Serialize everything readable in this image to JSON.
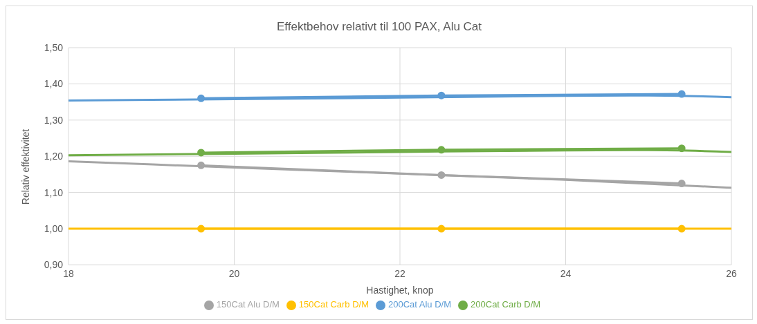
{
  "chart_data": {
    "type": "line",
    "title": "Effektbehov relativt til 100 PAX, Alu Cat",
    "xlabel": "Hastighet, knop",
    "ylabel": "Relativ effektivitet",
    "xlim": [
      18,
      26
    ],
    "xticks": [
      18,
      20,
      22,
      24,
      26
    ],
    "ylim": [
      0.9,
      1.5
    ],
    "yticks": [
      {
        "value": 0.9,
        "label": "0,90"
      },
      {
        "value": 1.0,
        "label": "1,00"
      },
      {
        "value": 1.1,
        "label": "1,10"
      },
      {
        "value": 1.2,
        "label": "1,20"
      },
      {
        "value": 1.3,
        "label": "1,30"
      },
      {
        "value": 1.4,
        "label": "1,40"
      },
      {
        "value": 1.5,
        "label": "1,50"
      }
    ],
    "grid": true,
    "legend": "bottom",
    "marker": "circle",
    "series": [
      {
        "color": "#a5a5a5",
        "marker": "none",
        "x": [
          18,
          20,
          22,
          24,
          26
        ],
        "values": [
          1.186,
          1.169,
          1.152,
          1.135,
          1.113
        ]
      },
      {
        "color": "#ffc000",
        "marker": "none",
        "x": [
          18,
          26
        ],
        "values": [
          1.0,
          1.0
        ]
      },
      {
        "color": "#5b9bd5",
        "marker": "none",
        "x": [
          18,
          20,
          22,
          24,
          25,
          26
        ],
        "values": [
          1.354,
          1.358,
          1.362,
          1.367,
          1.368,
          1.363
        ]
      },
      {
        "color": "#70ad47",
        "marker": "none",
        "x": [
          18,
          20,
          22,
          24,
          25,
          26
        ],
        "values": [
          1.203,
          1.207,
          1.212,
          1.216,
          1.217,
          1.212
        ]
      },
      {
        "name": "150Cat Alu D/M",
        "color": "#a5a5a5",
        "x": [
          19.6,
          22.5,
          25.4
        ],
        "values": [
          1.175,
          1.148,
          1.125
        ]
      },
      {
        "name": "150Cat Carb D/M",
        "color": "#ffc000",
        "x": [
          19.6,
          22.5,
          25.4
        ],
        "values": [
          1.0,
          1.0,
          1.0
        ]
      },
      {
        "name": "200Cat Alu D/M",
        "color": "#5b9bd5",
        "x": [
          19.6,
          22.5,
          25.4
        ],
        "values": [
          1.36,
          1.368,
          1.372
        ]
      },
      {
        "name": "200Cat Carb D/M",
        "color": "#70ad47",
        "x": [
          19.6,
          22.5,
          25.4
        ],
        "values": [
          1.21,
          1.218,
          1.222
        ]
      }
    ]
  }
}
